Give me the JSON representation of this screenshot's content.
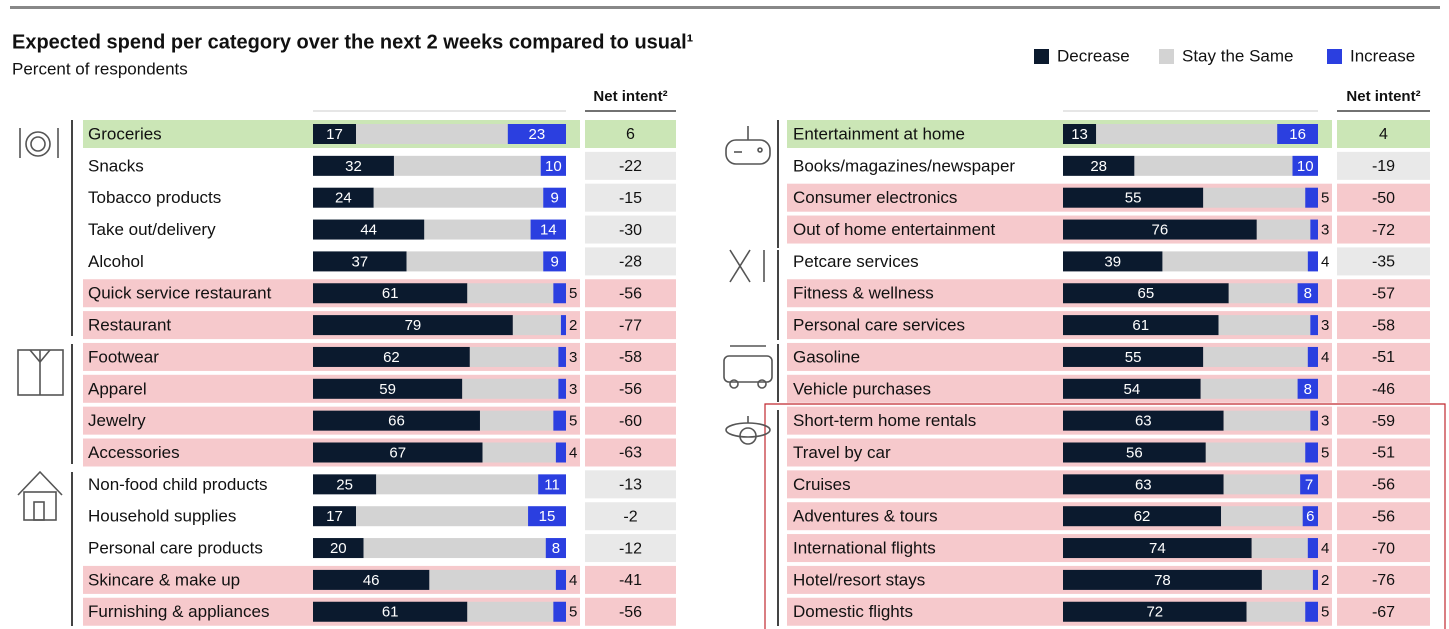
{
  "chart_data": [
    {
      "type": "bar",
      "orientation": "horizontal",
      "stacked": true,
      "title": "Expected spend per category over the next 2 weeks compared to usual¹",
      "subtitle": "Percent of respondents",
      "legend": "top-right",
      "column_label": "Net intent²",
      "xlim": [
        0,
        100
      ],
      "categories": [
        "Groceries",
        "Snacks",
        "Tobacco products",
        "Take out/delivery",
        "Alcohol",
        "Quick service restaurant",
        "Restaurant",
        "Footwear",
        "Apparel",
        "Jewelry",
        "Accessories",
        "Non-food child products",
        "Household supplies",
        "Personal care products",
        "Skincare & make up",
        "Furnishing & appliances"
      ],
      "row_fill": [
        "#cbe6b6",
        "#ffffff",
        "#ffffff",
        "#ffffff",
        "#ffffff",
        "#f6c9cc",
        "#f6c9cc",
        "#f6c9cc",
        "#f6c9cc",
        "#f6c9cc",
        "#f6c9cc",
        "#ffffff",
        "#ffffff",
        "#ffffff",
        "#f6c9cc",
        "#f6c9cc"
      ],
      "series": [
        {
          "name": "Decrease",
          "color": "#0b1a2e",
          "values": [
            17,
            32,
            24,
            44,
            37,
            61,
            79,
            62,
            59,
            66,
            67,
            25,
            17,
            20,
            46,
            61
          ]
        },
        {
          "name": "Stay the Same",
          "color": "#d3d3d3",
          "values": [
            60,
            58,
            67,
            42,
            54,
            34,
            19,
            35,
            38,
            29,
            29,
            64,
            68,
            72,
            50,
            34
          ]
        },
        {
          "name": "Increase",
          "color": "#2b3fe0",
          "values": [
            23,
            10,
            9,
            14,
            9,
            5,
            2,
            3,
            3,
            5,
            4,
            11,
            15,
            8,
            4,
            5
          ]
        }
      ],
      "net_intent": [
        6,
        -22,
        -15,
        -30,
        -28,
        -56,
        -77,
        -58,
        -56,
        -60,
        -63,
        -13,
        -2,
        -12,
        -41,
        -56
      ]
    },
    {
      "type": "bar",
      "orientation": "horizontal",
      "stacked": true,
      "column_label": "Net intent²",
      "xlim": [
        0,
        100
      ],
      "categories": [
        "Entertainment at home",
        "Books/magazines/newspaper",
        "Consumer electronics",
        "Out of home entertainment",
        "Petcare services",
        "Fitness & wellness",
        "Personal care services",
        "Gasoline",
        "Vehicle purchases",
        "Short-term home rentals",
        "Travel by car",
        "Cruises",
        "Adventures & tours",
        "International flights",
        "Hotel/resort stays",
        "Domestic flights"
      ],
      "row_fill": [
        "#cbe6b6",
        "#ffffff",
        "#f6c9cc",
        "#f6c9cc",
        "#ffffff",
        "#f6c9cc",
        "#f6c9cc",
        "#f6c9cc",
        "#f6c9cc",
        "#f6c9cc",
        "#f6c9cc",
        "#f6c9cc",
        "#f6c9cc",
        "#f6c9cc",
        "#f6c9cc",
        "#f6c9cc"
      ],
      "series": [
        {
          "color": "#0b1a2e",
          "values": [
            13,
            28,
            55,
            76,
            39,
            65,
            61,
            55,
            54,
            63,
            56,
            63,
            62,
            74,
            78,
            72
          ]
        },
        {
          "color": "#d3d3d3",
          "values": [
            71,
            62,
            40,
            21,
            57,
            27,
            36,
            41,
            38,
            34,
            39,
            30,
            32,
            22,
            20,
            23
          ]
        },
        {
          "color": "#2b3fe0",
          "values": [
            16,
            10,
            5,
            3,
            4,
            8,
            3,
            4,
            8,
            3,
            5,
            7,
            6,
            4,
            2,
            5
          ]
        }
      ],
      "net_intent": [
        4,
        -19,
        -50,
        -72,
        -35,
        -57,
        -58,
        -51,
        -46,
        -59,
        -51,
        -56,
        -56,
        -70,
        -76,
        -67
      ]
    }
  ]
}
